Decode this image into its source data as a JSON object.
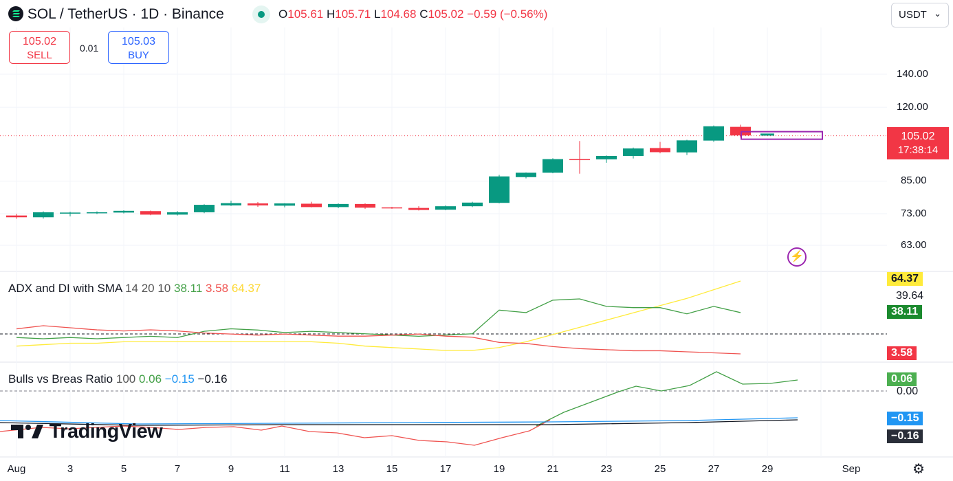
{
  "header": {
    "symbol": "SOL / TetherUS · 1D · Binance",
    "o_label": "O",
    "o": "105.61",
    "h_label": "H",
    "h": "105.71",
    "l_label": "L",
    "l": "104.68",
    "c_label": "C",
    "c": "105.02",
    "change": "−0.59 (−0.56%)",
    "currency": "USDT"
  },
  "trade": {
    "sell_price": "105.02",
    "sell_label": "SELL",
    "spread": "0.01",
    "buy_price": "105.03",
    "buy_label": "BUY"
  },
  "price_axis": {
    "labels": [
      "140.00",
      "120.00",
      "85.00",
      "73.00",
      "63.00"
    ],
    "current_price": "105.02",
    "countdown": "17:38:14"
  },
  "adx": {
    "name": "ADX and DI with SMA",
    "params": "14 20 10",
    "v1": "38.11",
    "v2": "3.58",
    "v3": "64.37",
    "axis_label": "39.64",
    "tag_adx": "64.37",
    "tag_plus": "38.11",
    "tag_minus": "3.58"
  },
  "bulls": {
    "name": "Bulls vs Breas Ratio",
    "params": "100",
    "v1": "0.06",
    "v2": "−0.15",
    "v3": "−0.16",
    "axis_label": "0.00",
    "tag1": "0.06",
    "tag2": "−0.15",
    "tag3": "−0.16"
  },
  "xaxis": {
    "labels": [
      "Aug",
      "3",
      "5",
      "7",
      "9",
      "11",
      "13",
      "15",
      "17",
      "19",
      "21",
      "23",
      "25",
      "27",
      "29",
      "Sep"
    ]
  },
  "branding": {
    "logo_text": "TradingView"
  },
  "colors": {
    "up": "#089981",
    "down": "#f23645",
    "plus_di": "#43a047",
    "minus_di": "#ef5350",
    "adx": "#ffeb3b",
    "blue": "#2196f3"
  },
  "chart_data": {
    "type": "candlestick",
    "dates": [
      "Aug 1",
      "Aug 2",
      "Aug 3",
      "Aug 4",
      "Aug 5",
      "Aug 6",
      "Aug 7",
      "Aug 8",
      "Aug 9",
      "Aug 10",
      "Aug 11",
      "Aug 12",
      "Aug 13",
      "Aug 14",
      "Aug 15",
      "Aug 16",
      "Aug 17",
      "Aug 18",
      "Aug 19",
      "Aug 20",
      "Aug 21",
      "Aug 22",
      "Aug 23",
      "Aug 24",
      "Aug 25",
      "Aug 26",
      "Aug 27",
      "Aug 28"
    ],
    "ohlc": [
      [
        72.4,
        73.0,
        71.3,
        71.8
      ],
      [
        71.8,
        73.8,
        71.4,
        73.5
      ],
      [
        73.4,
        73.7,
        72.1,
        73.4
      ],
      [
        73.2,
        73.8,
        72.9,
        73.5
      ],
      [
        73.4,
        74.2,
        73.1,
        74.0
      ],
      [
        73.9,
        74.1,
        72.5,
        72.7
      ],
      [
        72.7,
        73.9,
        72.4,
        73.5
      ],
      [
        73.5,
        76.3,
        73.2,
        76.1
      ],
      [
        75.9,
        77.6,
        75.7,
        76.7
      ],
      [
        76.6,
        77.1,
        75.4,
        75.9
      ],
      [
        75.8,
        76.7,
        75.2,
        76.6
      ],
      [
        76.5,
        77.2,
        75.2,
        75.3
      ],
      [
        75.3,
        76.6,
        74.9,
        76.4
      ],
      [
        76.4,
        76.6,
        74.7,
        75.1
      ],
      [
        75.2,
        75.4,
        74.7,
        74.9
      ],
      [
        75.0,
        75.6,
        74.1,
        74.3
      ],
      [
        74.4,
        75.9,
        74.2,
        75.6
      ],
      [
        75.6,
        77.2,
        75.3,
        76.9
      ],
      [
        76.8,
        87.5,
        76.6,
        86.9
      ],
      [
        86.6,
        88.5,
        86.1,
        88.4
      ],
      [
        88.4,
        94.6,
        88.2,
        94.2
      ],
      [
        94.2,
        102.5,
        88.0,
        94.0
      ],
      [
        94.1,
        95.8,
        92.6,
        95.6
      ],
      [
        95.6,
        99.4,
        94.5,
        99.0
      ],
      [
        99.2,
        102.1,
        96.8,
        97.3
      ],
      [
        97.2,
        103.1,
        96.0,
        102.8
      ],
      [
        102.7,
        110.2,
        102.1,
        109.8
      ],
      [
        109.5,
        110.6,
        104.2,
        105.2
      ]
    ],
    "current": [
      105.61,
      105.71,
      104.68,
      105.02
    ],
    "adx_di": {
      "plus_di": [
        22,
        21,
        22,
        21,
        22,
        23,
        22,
        27,
        29,
        28,
        26,
        27,
        26,
        25,
        24,
        23,
        24,
        25,
        44,
        42,
        52,
        53,
        47,
        46,
        46,
        41,
        47,
        42
      ],
      "minus_di": [
        30,
        33,
        31,
        29,
        28,
        29,
        28,
        26,
        25,
        24,
        25,
        24,
        23,
        23,
        24,
        25,
        23,
        22,
        17,
        16,
        13,
        11,
        10,
        9,
        9,
        8,
        7,
        6
      ],
      "adx": [
        16,
        17,
        18,
        18,
        19,
        19,
        19,
        19,
        19,
        19,
        19,
        19,
        18,
        16,
        15,
        14,
        13,
        13,
        15,
        19,
        24,
        29,
        34,
        39,
        44,
        49,
        55,
        61
      ]
    },
    "bulls_bears": {
      "green": [
        0.06
      ],
      "blue": [
        -0.15
      ],
      "black": [
        -0.16
      ],
      "red": [
        -0.22
      ]
    }
  }
}
